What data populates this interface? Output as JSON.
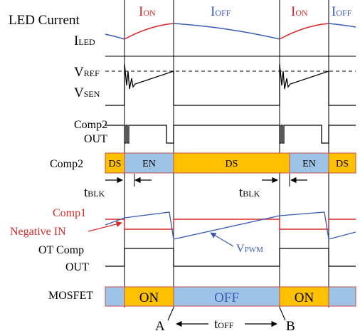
{
  "phase_labels": [
    {
      "main": "I",
      "sub": "ON"
    },
    {
      "main": "I",
      "sub": "OFF"
    },
    {
      "main": "I",
      "sub": "ON"
    },
    {
      "main": "I",
      "sub": "OFF"
    }
  ],
  "labels": {
    "led_current": "LED Current",
    "i_led": {
      "main": "I",
      "sub": "LED"
    },
    "v_ref": {
      "main": "V",
      "sub": "REF"
    },
    "v_sen": {
      "main": "V",
      "sub": "SEN"
    },
    "comp2_out_line1": "Comp2",
    "comp2_out_line2": "OUT",
    "comp2": "Comp2",
    "t_blk": {
      "main": "t",
      "sub": "BLK"
    },
    "comp1": "Comp1",
    "negative_in": "Negative IN",
    "v_pwm": {
      "main": "V",
      "sub": "PWM"
    },
    "ot_comp_line1": "OT Comp",
    "ot_comp_line2": "OUT",
    "mosfet": "MOSFET",
    "point_a": "A",
    "point_b": "B",
    "t_off": {
      "main": "t",
      "sub": "OFF"
    }
  },
  "comp2_states": [
    "DS",
    "EN",
    "DS",
    "EN",
    "DS"
  ],
  "mosfet_states": [
    "",
    "ON",
    "OFF",
    "ON",
    ""
  ],
  "colors": {
    "orange": "#ffc000",
    "light_blue": "#9dc3e6",
    "red": "#d62828",
    "blue": "#3a5bb5",
    "border": "#c0504d"
  }
}
